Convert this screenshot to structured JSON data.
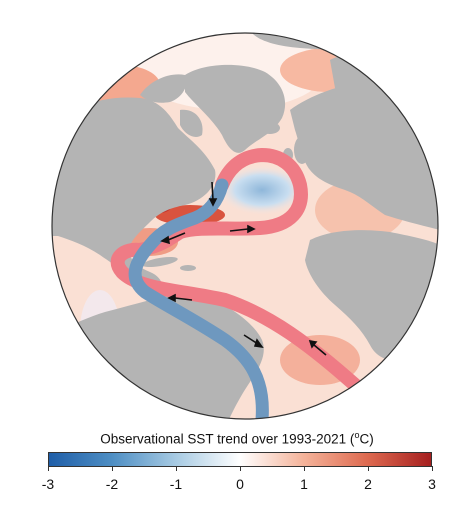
{
  "colorbar": {
    "title_prefix": "Observational SST trend over 1993-2021 (",
    "title_sup": "o",
    "title_suffix": "C)",
    "min": -3,
    "max": 3,
    "ticks": [
      "-3",
      "-2",
      "-1",
      "0",
      "1",
      "2",
      "3"
    ],
    "colors": [
      "#1f5ea8",
      "#4f8fc4",
      "#a8cbe3",
      "#ffffff",
      "#f4b39a",
      "#de6a50",
      "#a51f1f"
    ]
  },
  "map": {
    "land_color": "#b4b4b4",
    "ocean_base_color": "#fbe3d8",
    "warm_current_color": "#ef7b85",
    "cold_current_color": "#6e98bf",
    "arrow_color": "#111111",
    "icons": [
      "globe-map",
      "warm-current-path",
      "cold-current-path",
      "flow-arrow-icon"
    ]
  }
}
